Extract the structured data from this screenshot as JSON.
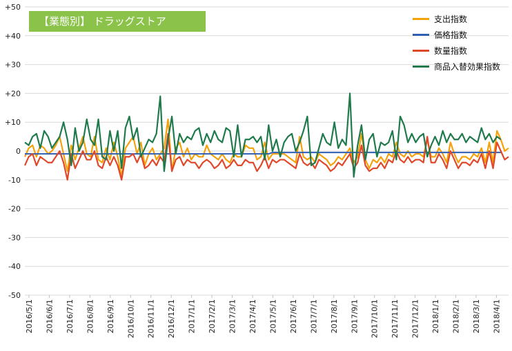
{
  "chart_data": {
    "type": "line",
    "title": "【業態別】 ドラッグストア",
    "ylim": [
      -50,
      50
    ],
    "yticks": [
      50,
      40,
      30,
      20,
      10,
      0,
      -10,
      -20,
      -30,
      -40,
      -50
    ],
    "ytick_labels": [
      "+50",
      "+40",
      "+30",
      "+20",
      "+10",
      "0",
      "-10",
      "-20",
      "-30",
      "-40",
      "-50"
    ],
    "x_start": "2016-05-01",
    "x_step": "week",
    "xtick_labels": [
      "2016/5/1",
      "2016/6/1",
      "2016/7/1",
      "2016/8/1",
      "2016/9/1",
      "2016/10/1",
      "2016/11/1",
      "2016/12/1",
      "2017/1/1",
      "2017/2/1",
      "2017/3/1",
      "2017/4/1",
      "2017/5/1",
      "2017/6/1",
      "2017/7/1",
      "2017/8/1",
      "2017/9/1",
      "2017/10/1",
      "2017/11/1",
      "2017/12/1",
      "2018/1/1",
      "2018/2/1",
      "2018/3/1",
      "2018/4/1"
    ],
    "grid": "horizontal",
    "legend_position": "top-right",
    "series": [
      {
        "name": "支出指数",
        "color": "#f5a20a",
        "values": [
          -2,
          1,
          2,
          -2,
          2,
          1,
          -1,
          0,
          2,
          5,
          -1,
          -7,
          2,
          -3,
          1,
          5,
          -1,
          -2,
          5,
          -3,
          -4,
          1,
          -3,
          3,
          -2,
          -9,
          1,
          3,
          5,
          -1,
          3,
          -5,
          -1,
          1,
          -3,
          -1,
          1,
          11,
          -7,
          1,
          3,
          -2,
          1,
          -3,
          -1,
          -2,
          -2,
          2,
          -1,
          -2,
          -3,
          -1,
          -3,
          -4,
          -1,
          -2,
          -2,
          2,
          1,
          1,
          -3,
          -2,
          3,
          -3,
          -1,
          -1,
          -1,
          -1,
          -2,
          -3,
          -4,
          5,
          -2,
          -3,
          -2,
          -4,
          -1,
          -2,
          -3,
          -5,
          -4,
          -2,
          -3,
          -1,
          1,
          -4,
          -2,
          6,
          -3,
          -6,
          -3,
          -4,
          -2,
          -4,
          -1,
          -2,
          3,
          -1,
          -2,
          0,
          -2,
          -1,
          -1,
          -2,
          4,
          -2,
          -2,
          1,
          -1,
          -4,
          3,
          -1,
          -4,
          -2,
          -2,
          -3,
          -1,
          -2,
          1,
          -4,
          3,
          -4,
          7,
          4,
          0,
          1
        ]
      },
      {
        "name": "価格指数",
        "color": "#2f5fb3",
        "values": [
          -1,
          -1,
          -1,
          -1,
          -1,
          -1,
          -1,
          -1,
          -1,
          -1,
          -1,
          -1,
          -1,
          -1,
          -1,
          -1,
          -1,
          -1,
          -1,
          -1,
          -1,
          -1,
          -1,
          -1,
          -1,
          -1,
          -1,
          -1,
          -1,
          -1,
          -1,
          -1,
          -1,
          -1,
          -1,
          -1,
          -1,
          -1,
          -1,
          -1,
          -1,
          -1,
          -1,
          -1,
          -1,
          -1,
          -1,
          -1,
          -1,
          -1,
          -1,
          -1,
          -1,
          -1,
          -1,
          -1,
          -1,
          -1,
          -1,
          -1,
          -1,
          -1,
          -1,
          -1,
          -0.5,
          -0.5,
          -0.5,
          -0.5,
          -0.5,
          -0.5,
          -0.5,
          -0.5,
          -0.5,
          -0.5,
          -0.5,
          -0.5,
          -0.5,
          -0.5,
          -0.5,
          -0.5,
          -0.5,
          -0.5,
          -0.5,
          -0.5,
          -0.5,
          -0.5,
          -0.5,
          -0.5,
          -0.5,
          -0.5,
          -0.5,
          -0.5,
          -0.5,
          -0.5,
          -0.5,
          -0.5,
          -0.5,
          -0.5,
          -0.5,
          -0.5,
          -0.5,
          -0.5,
          -0.5,
          -0.5,
          -0.5,
          -0.5,
          -0.5,
          -0.5,
          -0.5,
          -0.5,
          -0.5,
          -0.5,
          -0.5,
          -0.5,
          -0.5,
          -0.5,
          -0.5,
          -0.5,
          -0.5,
          -0.5,
          -0.5,
          -0.5,
          -0.5,
          -0.5
        ]
      },
      {
        "name": "数量指数",
        "color": "#e0482a",
        "values": [
          -5,
          -2,
          -1,
          -5,
          -2,
          -3,
          -4,
          -4,
          -2,
          0,
          -4,
          -10,
          -1,
          -6,
          -3,
          0,
          -3,
          -3,
          0,
          -5,
          -6,
          -2,
          -5,
          -2,
          -5,
          -10,
          -2,
          -2,
          -1,
          -4,
          -1,
          -6,
          -5,
          -3,
          -5,
          -2,
          -4,
          6,
          -7,
          -3,
          -2,
          -5,
          -3,
          -4,
          -4,
          -6,
          -4,
          -3,
          -4,
          -6,
          -5,
          -3,
          -6,
          -5,
          -3,
          -5,
          -5,
          -3,
          -4,
          -4,
          -7,
          -5,
          -2,
          -6,
          -3,
          -4,
          -3,
          -3,
          -4,
          -5,
          -6,
          -1,
          -4,
          -5,
          -4,
          -6,
          -3,
          -4,
          -5,
          -7,
          -6,
          -4,
          -5,
          -3,
          -1,
          -6,
          -4,
          2,
          -5,
          -7,
          -6,
          -6,
          -4,
          -6,
          -3,
          -4,
          0,
          -3,
          -4,
          -2,
          -4,
          -3,
          -3,
          -4,
          5,
          -4,
          -4,
          -1,
          -3,
          -6,
          0,
          -3,
          -6,
          -4,
          -4,
          -5,
          -3,
          -4,
          -1,
          -6,
          0,
          -6,
          3,
          0,
          -3,
          -2
        ]
      },
      {
        "name": "商品入替効果指数",
        "color": "#1f7a4c",
        "values": [
          3,
          2,
          5,
          6,
          1,
          7,
          5,
          1,
          3,
          5,
          10,
          4,
          -5,
          8,
          0,
          3,
          11,
          4,
          2,
          11,
          -2,
          -3,
          7,
          0,
          7,
          -6,
          8,
          12,
          4,
          8,
          -2,
          1,
          4,
          3,
          6,
          19,
          -7,
          4,
          12,
          -1,
          6,
          3,
          5,
          4,
          7,
          8,
          2,
          6,
          3,
          7,
          4,
          3,
          8,
          7,
          -2,
          9,
          -2,
          4,
          4,
          5,
          3,
          5,
          -3,
          9,
          0,
          4,
          -2,
          3,
          5,
          6,
          0,
          3,
          7,
          12,
          -5,
          -4,
          1,
          6,
          3,
          2,
          10,
          1,
          4,
          2,
          20,
          -9,
          2,
          9,
          -3,
          4,
          6,
          -2,
          3,
          2,
          3,
          7,
          -3,
          12,
          9,
          3,
          6,
          3,
          5,
          6,
          -2,
          2,
          5,
          2,
          7,
          3,
          6,
          4,
          4,
          6,
          3,
          5,
          4,
          3,
          8,
          4,
          6,
          3,
          5,
          4
        ]
      }
    ]
  }
}
